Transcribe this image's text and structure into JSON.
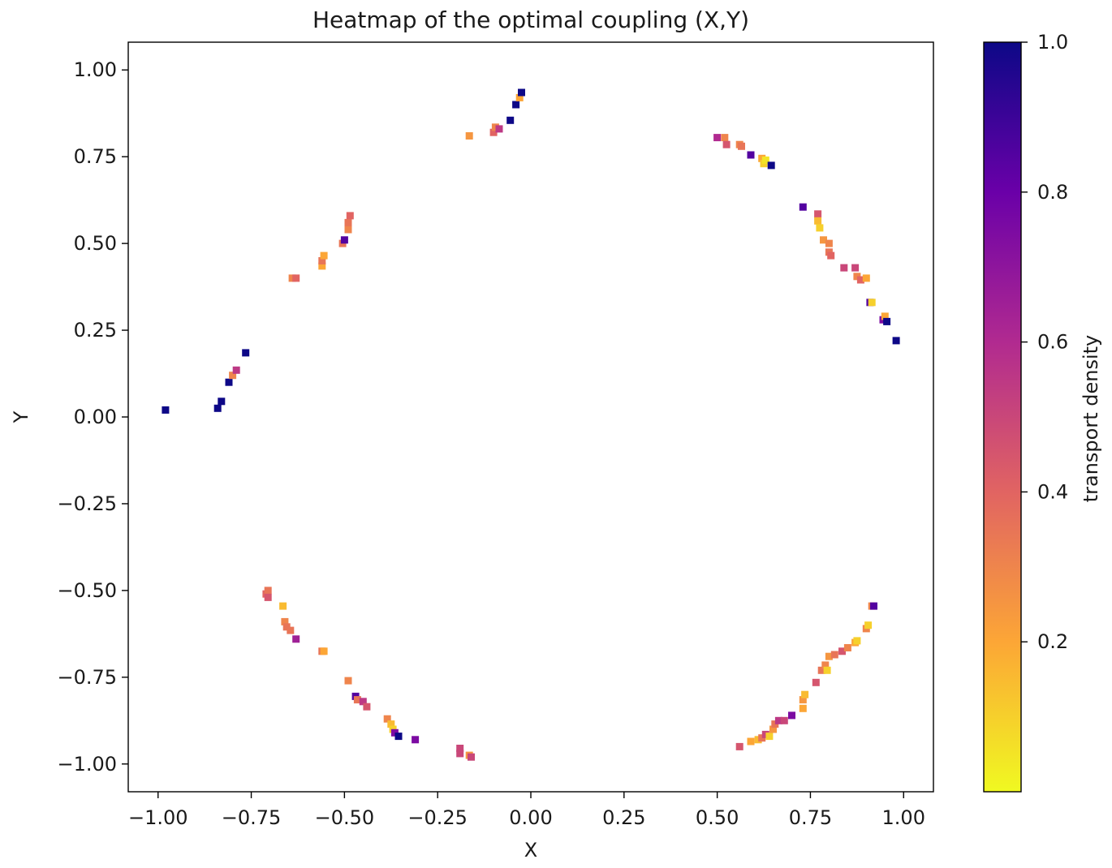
{
  "chart_data": {
    "type": "heatmap",
    "title": "Heatmap of the optimal coupling (X,Y)",
    "xlabel": "X",
    "ylabel": "Y",
    "xlim": [
      -1.08,
      1.08
    ],
    "ylim": [
      -1.08,
      1.08
    ],
    "xticks": [
      -1.0,
      -0.75,
      -0.5,
      -0.25,
      0.0,
      0.25,
      0.5,
      0.75,
      1.0
    ],
    "xtick_labels": [
      "−1.00",
      "−0.75",
      "−0.50",
      "−0.25",
      "0.00",
      "0.25",
      "0.50",
      "0.75",
      "1.00"
    ],
    "yticks": [
      1.0,
      0.75,
      0.5,
      0.25,
      0.0,
      -0.25,
      -0.5,
      -0.75,
      -1.0
    ],
    "ytick_labels": [
      "1.00",
      "0.75",
      "0.50",
      "0.25",
      "0.00",
      "−0.25",
      "−0.50",
      "−0.75",
      "−1.00"
    ],
    "colorbar": {
      "label": "transport density",
      "range": [
        0.0,
        1.0
      ],
      "ticks": [
        1.0,
        0.8,
        0.6,
        0.4,
        0.2
      ],
      "tick_labels": [
        "1.0",
        "0.8",
        "0.6",
        "0.4",
        "0.2"
      ],
      "colormap": "plasma_r",
      "colors": [
        "#f0f921",
        "#fca636",
        "#e16462",
        "#b12a90",
        "#6a00a8",
        "#0d0887"
      ]
    },
    "points": [
      {
        "x": -0.98,
        "y": 0.02,
        "v": 1.0
      },
      {
        "x": -0.84,
        "y": 0.025,
        "v": 1.0
      },
      {
        "x": -0.83,
        "y": 0.045,
        "v": 1.0
      },
      {
        "x": -0.81,
        "y": 0.1,
        "v": 1.0
      },
      {
        "x": -0.8,
        "y": 0.12,
        "v": 0.3
      },
      {
        "x": -0.79,
        "y": 0.135,
        "v": 0.55
      },
      {
        "x": -0.765,
        "y": 0.185,
        "v": 1.0
      },
      {
        "x": -0.64,
        "y": 0.4,
        "v": 0.3
      },
      {
        "x": -0.63,
        "y": 0.4,
        "v": 0.4
      },
      {
        "x": -0.56,
        "y": 0.435,
        "v": 0.2
      },
      {
        "x": -0.56,
        "y": 0.45,
        "v": 0.35
      },
      {
        "x": -0.555,
        "y": 0.465,
        "v": 0.2
      },
      {
        "x": -0.505,
        "y": 0.5,
        "v": 0.35
      },
      {
        "x": -0.5,
        "y": 0.51,
        "v": 0.85
      },
      {
        "x": -0.49,
        "y": 0.54,
        "v": 0.3
      },
      {
        "x": -0.49,
        "y": 0.56,
        "v": 0.35
      },
      {
        "x": -0.485,
        "y": 0.58,
        "v": 0.4
      },
      {
        "x": -0.165,
        "y": 0.81,
        "v": 0.25
      },
      {
        "x": -0.1,
        "y": 0.82,
        "v": 0.4
      },
      {
        "x": -0.095,
        "y": 0.835,
        "v": 0.3
      },
      {
        "x": -0.085,
        "y": 0.83,
        "v": 0.55
      },
      {
        "x": -0.055,
        "y": 0.855,
        "v": 1.0
      },
      {
        "x": -0.04,
        "y": 0.9,
        "v": 1.0
      },
      {
        "x": -0.03,
        "y": 0.92,
        "v": 0.2
      },
      {
        "x": -0.025,
        "y": 0.935,
        "v": 1.0
      },
      {
        "x": 0.5,
        "y": 0.805,
        "v": 0.6
      },
      {
        "x": 0.52,
        "y": 0.805,
        "v": 0.3
      },
      {
        "x": 0.525,
        "y": 0.785,
        "v": 0.45
      },
      {
        "x": 0.56,
        "y": 0.785,
        "v": 0.3
      },
      {
        "x": 0.565,
        "y": 0.78,
        "v": 0.35
      },
      {
        "x": 0.59,
        "y": 0.755,
        "v": 0.85
      },
      {
        "x": 0.62,
        "y": 0.745,
        "v": 0.2
      },
      {
        "x": 0.625,
        "y": 0.73,
        "v": 0.1
      },
      {
        "x": 0.63,
        "y": 0.74,
        "v": 0.05
      },
      {
        "x": 0.645,
        "y": 0.725,
        "v": 1.0
      },
      {
        "x": 0.73,
        "y": 0.605,
        "v": 0.85
      },
      {
        "x": 0.77,
        "y": 0.585,
        "v": 0.45
      },
      {
        "x": 0.77,
        "y": 0.565,
        "v": 0.15
      },
      {
        "x": 0.775,
        "y": 0.545,
        "v": 0.1
      },
      {
        "x": 0.785,
        "y": 0.51,
        "v": 0.25
      },
      {
        "x": 0.8,
        "y": 0.5,
        "v": 0.3
      },
      {
        "x": 0.8,
        "y": 0.475,
        "v": 0.35
      },
      {
        "x": 0.805,
        "y": 0.465,
        "v": 0.4
      },
      {
        "x": 0.84,
        "y": 0.43,
        "v": 0.5
      },
      {
        "x": 0.87,
        "y": 0.43,
        "v": 0.5
      },
      {
        "x": 0.875,
        "y": 0.405,
        "v": 0.3
      },
      {
        "x": 0.885,
        "y": 0.395,
        "v": 0.4
      },
      {
        "x": 0.9,
        "y": 0.4,
        "v": 0.2
      },
      {
        "x": 0.91,
        "y": 0.33,
        "v": 0.85
      },
      {
        "x": 0.915,
        "y": 0.33,
        "v": 0.1
      },
      {
        "x": 0.945,
        "y": 0.28,
        "v": 0.75
      },
      {
        "x": 0.95,
        "y": 0.29,
        "v": 0.2
      },
      {
        "x": 0.955,
        "y": 0.275,
        "v": 1.0
      },
      {
        "x": 0.98,
        "y": 0.22,
        "v": 1.0
      },
      {
        "x": -0.71,
        "y": -0.51,
        "v": 0.4
      },
      {
        "x": -0.705,
        "y": -0.5,
        "v": 0.35
      },
      {
        "x": -0.705,
        "y": -0.52,
        "v": 0.45
      },
      {
        "x": -0.665,
        "y": -0.545,
        "v": 0.15
      },
      {
        "x": -0.66,
        "y": -0.59,
        "v": 0.3
      },
      {
        "x": -0.655,
        "y": -0.605,
        "v": 0.35
      },
      {
        "x": -0.645,
        "y": -0.615,
        "v": 0.35
      },
      {
        "x": -0.63,
        "y": -0.64,
        "v": 0.65
      },
      {
        "x": -0.56,
        "y": -0.675,
        "v": 0.35
      },
      {
        "x": -0.555,
        "y": -0.675,
        "v": 0.2
      },
      {
        "x": -0.49,
        "y": -0.76,
        "v": 0.3
      },
      {
        "x": -0.47,
        "y": -0.805,
        "v": 0.85
      },
      {
        "x": -0.465,
        "y": -0.815,
        "v": 0.35
      },
      {
        "x": -0.45,
        "y": -0.82,
        "v": 0.55
      },
      {
        "x": -0.44,
        "y": -0.835,
        "v": 0.45
      },
      {
        "x": -0.385,
        "y": -0.87,
        "v": 0.3
      },
      {
        "x": -0.375,
        "y": -0.885,
        "v": 0.15
      },
      {
        "x": -0.37,
        "y": -0.9,
        "v": 0.1
      },
      {
        "x": -0.365,
        "y": -0.91,
        "v": 0.75
      },
      {
        "x": -0.355,
        "y": -0.92,
        "v": 1.0
      },
      {
        "x": -0.31,
        "y": -0.93,
        "v": 0.75
      },
      {
        "x": -0.19,
        "y": -0.955,
        "v": 0.5
      },
      {
        "x": -0.19,
        "y": -0.97,
        "v": 0.5
      },
      {
        "x": -0.165,
        "y": -0.975,
        "v": 0.25
      },
      {
        "x": -0.16,
        "y": -0.98,
        "v": 0.5
      },
      {
        "x": 0.56,
        "y": -0.95,
        "v": 0.45
      },
      {
        "x": 0.59,
        "y": -0.935,
        "v": 0.2
      },
      {
        "x": 0.61,
        "y": -0.93,
        "v": 0.15
      },
      {
        "x": 0.62,
        "y": -0.925,
        "v": 0.35
      },
      {
        "x": 0.63,
        "y": -0.915,
        "v": 0.5
      },
      {
        "x": 0.64,
        "y": -0.92,
        "v": 0.1
      },
      {
        "x": 0.65,
        "y": -0.9,
        "v": 0.25
      },
      {
        "x": 0.655,
        "y": -0.885,
        "v": 0.35
      },
      {
        "x": 0.665,
        "y": -0.875,
        "v": 0.55
      },
      {
        "x": 0.68,
        "y": -0.875,
        "v": 0.5
      },
      {
        "x": 0.7,
        "y": -0.86,
        "v": 0.75
      },
      {
        "x": 0.73,
        "y": -0.84,
        "v": 0.2
      },
      {
        "x": 0.73,
        "y": -0.815,
        "v": 0.25
      },
      {
        "x": 0.735,
        "y": -0.8,
        "v": 0.15
      },
      {
        "x": 0.765,
        "y": -0.765,
        "v": 0.45
      },
      {
        "x": 0.78,
        "y": -0.73,
        "v": 0.35
      },
      {
        "x": 0.79,
        "y": -0.715,
        "v": 0.3
      },
      {
        "x": 0.795,
        "y": -0.73,
        "v": 0.1
      },
      {
        "x": 0.8,
        "y": -0.69,
        "v": 0.25
      },
      {
        "x": 0.815,
        "y": -0.685,
        "v": 0.35
      },
      {
        "x": 0.835,
        "y": -0.675,
        "v": 0.45
      },
      {
        "x": 0.85,
        "y": -0.665,
        "v": 0.3
      },
      {
        "x": 0.87,
        "y": -0.65,
        "v": 0.2
      },
      {
        "x": 0.875,
        "y": -0.645,
        "v": 0.1
      },
      {
        "x": 0.9,
        "y": -0.61,
        "v": 0.3
      },
      {
        "x": 0.905,
        "y": -0.6,
        "v": 0.1
      },
      {
        "x": 0.915,
        "y": -0.545,
        "v": 0.3
      },
      {
        "x": 0.92,
        "y": -0.545,
        "v": 0.85
      }
    ]
  }
}
